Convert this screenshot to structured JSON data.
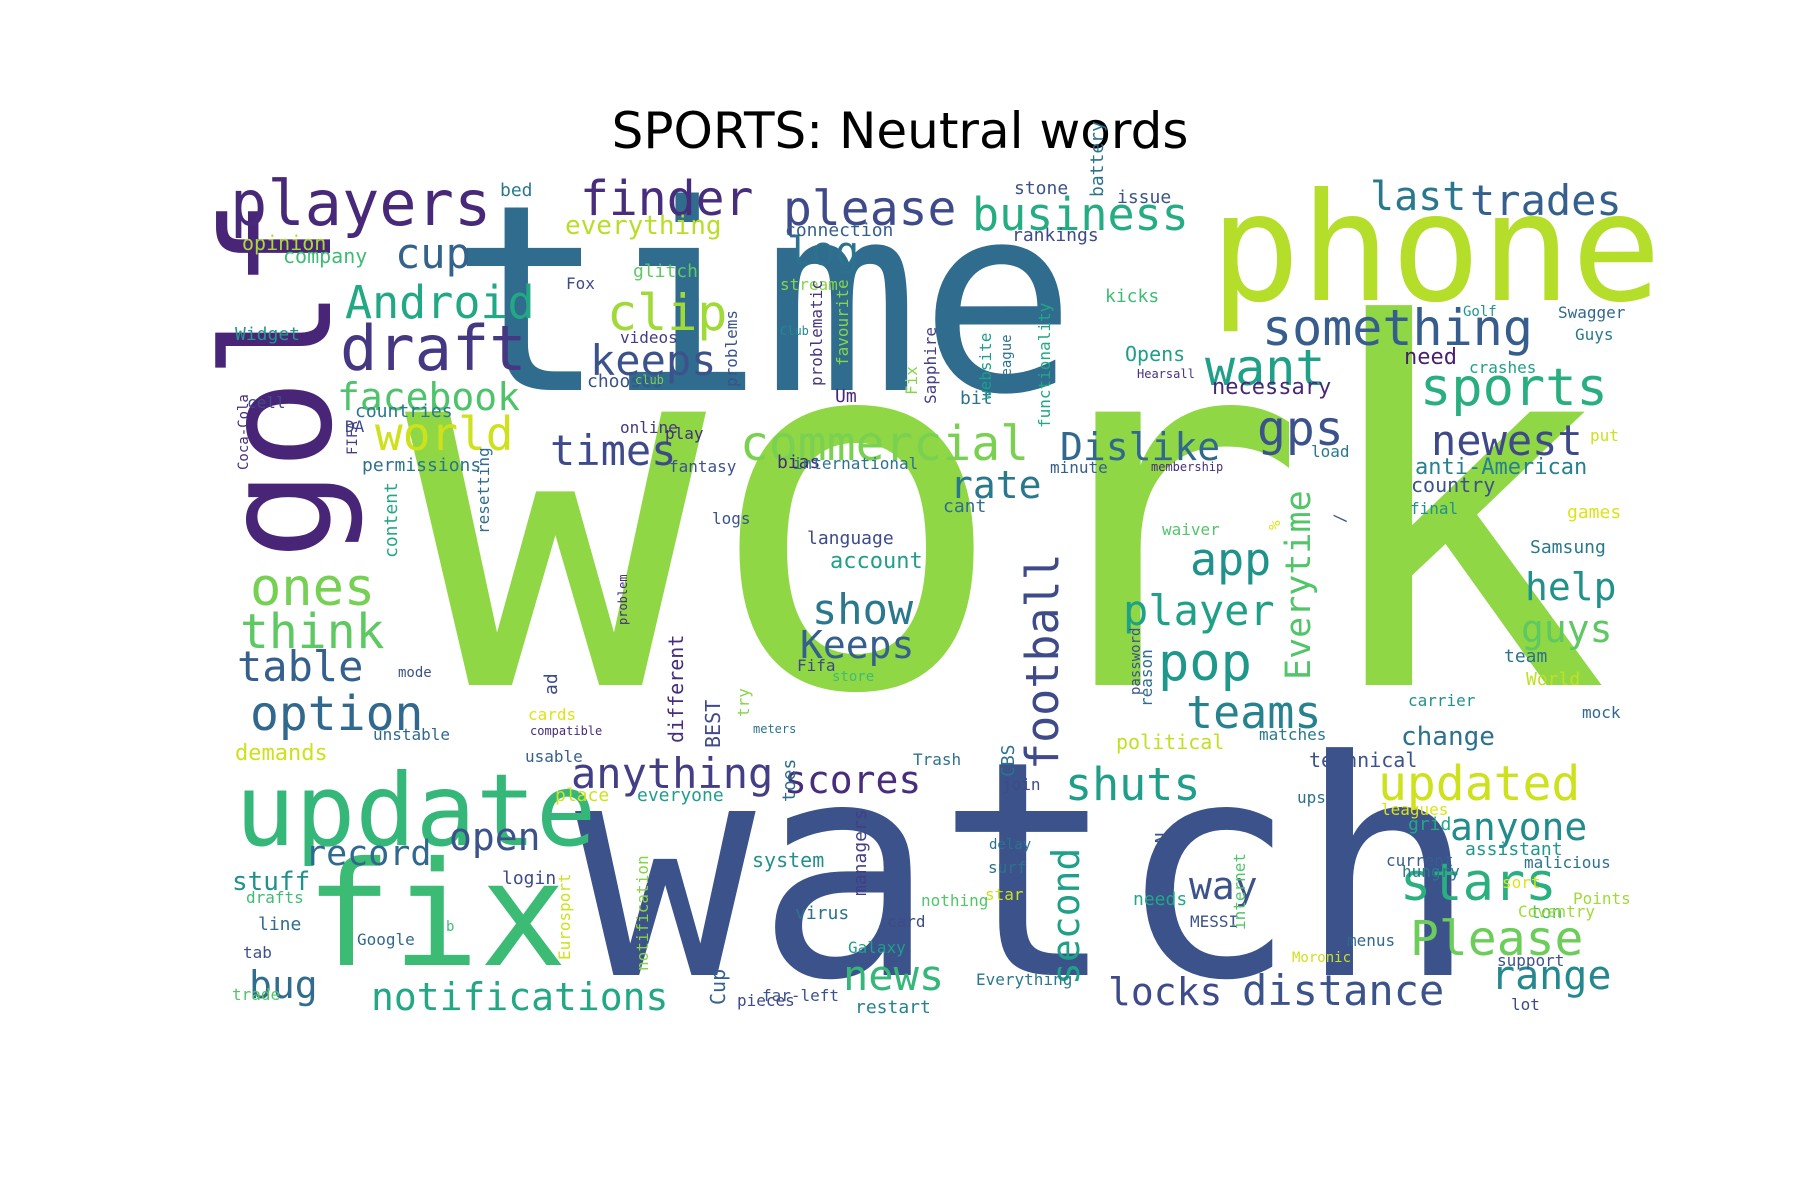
{
  "title": "SPORTS: Neutral words",
  "words": [
    {
      "text": "work",
      "color": "#8fd744"
    },
    {
      "text": "time",
      "color": "#2f6c8e"
    },
    {
      "text": "watch",
      "color": "#3b528b"
    },
    {
      "text": "phone",
      "color": "#b5de2b"
    },
    {
      "text": "golf",
      "color": "#482576"
    },
    {
      "text": "update",
      "color": "#35b779"
    },
    {
      "text": "fix",
      "color": "#3cbb75"
    },
    {
      "text": "players",
      "color": "#482878"
    },
    {
      "text": "draft",
      "color": "#453781"
    },
    {
      "text": "finder",
      "color": "#472d7b"
    },
    {
      "text": "please",
      "color": "#3e4a89"
    },
    {
      "text": "business",
      "color": "#25ac82"
    },
    {
      "text": "last",
      "color": "#2a788e"
    },
    {
      "text": "trades",
      "color": "#355f8d"
    },
    {
      "text": "something",
      "color": "#365d8d"
    },
    {
      "text": "want",
      "color": "#1fa088"
    },
    {
      "text": "sports",
      "color": "#29af7f"
    },
    {
      "text": "Android",
      "color": "#22a884"
    },
    {
      "text": "clip",
      "color": "#a0da39"
    },
    {
      "text": "keeps",
      "color": "#3b528b"
    },
    {
      "text": "log",
      "color": "#2c728e"
    },
    {
      "text": "cup",
      "color": "#33638d"
    },
    {
      "text": "facebook",
      "color": "#4ec36b"
    },
    {
      "text": "world",
      "color": "#cde11d"
    },
    {
      "text": "commercial",
      "color": "#7ad151"
    },
    {
      "text": "Dislike",
      "color": "#31688e"
    },
    {
      "text": "gps",
      "color": "#3b528b"
    },
    {
      "text": "newest",
      "color": "#3e4989"
    },
    {
      "text": "times",
      "color": "#3e4a89"
    },
    {
      "text": "rate",
      "color": "#2a788e"
    },
    {
      "text": "ones",
      "color": "#75d054"
    },
    {
      "text": "think",
      "color": "#5ec962"
    },
    {
      "text": "table",
      "color": "#355f8d"
    },
    {
      "text": "option",
      "color": "#31688e"
    },
    {
      "text": "app",
      "color": "#20928c"
    },
    {
      "text": "player",
      "color": "#1fa187"
    },
    {
      "text": "football",
      "color": "#3e4a89"
    },
    {
      "text": "Everytime",
      "color": "#52c569"
    },
    {
      "text": "pop",
      "color": "#1f988b"
    },
    {
      "text": "help",
      "color": "#21918c"
    },
    {
      "text": "guys",
      "color": "#5ec962"
    },
    {
      "text": "teams",
      "color": "#26828e"
    },
    {
      "text": "show",
      "color": "#2a788e"
    },
    {
      "text": "Keeps",
      "color": "#355f8d"
    },
    {
      "text": "anything",
      "color": "#433e85"
    },
    {
      "text": "scores",
      "color": "#472d7b"
    },
    {
      "text": "updated",
      "color": "#cde11d"
    },
    {
      "text": "shuts",
      "color": "#1f9e89"
    },
    {
      "text": "anyone",
      "color": "#228c8d"
    },
    {
      "text": "stars",
      "color": "#2ab07f"
    },
    {
      "text": "record",
      "color": "#31688e"
    },
    {
      "text": "open",
      "color": "#3b528b"
    },
    {
      "text": "way",
      "color": "#3b528b"
    },
    {
      "text": "Please",
      "color": "#6ccd5a"
    },
    {
      "text": "range",
      "color": "#23898e"
    },
    {
      "text": "notifications",
      "color": "#22a884"
    },
    {
      "text": "news",
      "color": "#35b779"
    },
    {
      "text": "second",
      "color": "#1fa088"
    },
    {
      "text": "locks",
      "color": "#3e4a89"
    },
    {
      "text": "distance",
      "color": "#3b528b"
    },
    {
      "text": "bug",
      "color": "#2f6c8e"
    },
    {
      "text": "stuff",
      "color": "#21918c"
    },
    {
      "text": "change",
      "color": "#2c728e"
    },
    {
      "text": "country",
      "color": "#3b528b"
    },
    {
      "text": "anti-American",
      "color": "#26828e"
    },
    {
      "text": "necessary",
      "color": "#482878"
    },
    {
      "text": "need",
      "color": "#481f70"
    },
    {
      "text": "everything",
      "color": "#b8de29"
    },
    {
      "text": "opinion",
      "color": "#a8db34"
    },
    {
      "text": "company",
      "color": "#3fbc73"
    },
    {
      "text": "bed",
      "color": "#2a788e"
    },
    {
      "text": "stone",
      "color": "#3b528b"
    },
    {
      "text": "issue",
      "color": "#3b528b"
    },
    {
      "text": "battery",
      "color": "#2c728e"
    },
    {
      "text": "rankings",
      "color": "#3e4a89"
    },
    {
      "text": "connection",
      "color": "#355f8d"
    },
    {
      "text": "glitch",
      "color": "#5ec962"
    },
    {
      "text": "Fox",
      "color": "#3e4a89"
    },
    {
      "text": "stream",
      "color": "#86d549"
    },
    {
      "text": "kicks",
      "color": "#3fbc73"
    },
    {
      "text": "Swagger",
      "color": "#31688e"
    },
    {
      "text": "Guys",
      "color": "#2a788e"
    },
    {
      "text": "crashes",
      "color": "#1fa088"
    },
    {
      "text": "Golf",
      "color": "#1f988b"
    },
    {
      "text": "Widget",
      "color": "#1f988b"
    },
    {
      "text": "cell",
      "color": "#3e4a89"
    },
    {
      "text": "countries",
      "color": "#2a788e"
    },
    {
      "text": "chooses",
      "color": "#3b528b"
    },
    {
      "text": "online",
      "color": "#453781"
    },
    {
      "text": "videos",
      "color": "#433e85"
    },
    {
      "text": "Club",
      "color": "#23898e"
    },
    {
      "text": "Opens",
      "color": "#1f9e89"
    },
    {
      "text": "Hearsall",
      "color": "#46337f"
    },
    {
      "text": "Um",
      "color": "#482878"
    },
    {
      "text": "bit",
      "color": "#2c728e"
    },
    {
      "text": "club",
      "color": "#7ad151"
    },
    {
      "text": "play",
      "color": "#472d7b"
    },
    {
      "text": "fantasy",
      "color": "#3b528b"
    },
    {
      "text": "bias",
      "color": "#482878"
    },
    {
      "text": "international",
      "color": "#2c728e"
    },
    {
      "text": "minute",
      "color": "#355f8d"
    },
    {
      "text": "membership",
      "color": "#472d7b"
    },
    {
      "text": "load",
      "color": "#2a788e"
    },
    {
      "text": "put",
      "color": "#cde11d"
    },
    {
      "text": "permissions",
      "color": "#2c728e"
    },
    {
      "text": "DA",
      "color": "#3e4a89"
    },
    {
      "text": "FIFA",
      "color": "#433e85"
    },
    {
      "text": "Coca-Cola",
      "color": "#472d7b"
    },
    {
      "text": "resetting",
      "color": "#2f6c8e"
    },
    {
      "text": "content",
      "color": "#22a884"
    },
    {
      "text": "logs",
      "color": "#3b528b"
    },
    {
      "text": "language",
      "color": "#3e4a89"
    },
    {
      "text": "account",
      "color": "#1f9e89"
    },
    {
      "text": "cant",
      "color": "#2f6c8e"
    },
    {
      "text": "waiver",
      "color": "#52c569"
    },
    {
      "text": "final",
      "color": "#21918c"
    },
    {
      "text": "games",
      "color": "#dde318"
    },
    {
      "text": "Samsung",
      "color": "#2a788e"
    },
    {
      "text": "team",
      "color": "#2c728e"
    },
    {
      "text": "World",
      "color": "#c2df23"
    },
    {
      "text": "mock",
      "color": "#31688e"
    },
    {
      "text": "carrier",
      "color": "#21918c"
    },
    {
      "text": "mode",
      "color": "#3b528b"
    },
    {
      "text": "ad",
      "color": "#3e4a89"
    },
    {
      "text": "Fifa",
      "color": "#3e4989"
    },
    {
      "text": "store",
      "color": "#3fbc73"
    },
    {
      "text": "cards",
      "color": "#dde318"
    },
    {
      "text": "compatible",
      "color": "#472d7b"
    },
    {
      "text": "meters",
      "color": "#2c728e"
    },
    {
      "text": "try",
      "color": "#86d549"
    },
    {
      "text": "political",
      "color": "#c2df23"
    },
    {
      "text": "matches",
      "color": "#2a788e"
    },
    {
      "text": "technical",
      "color": "#3b528b"
    },
    {
      "text": "unstable",
      "color": "#31688e"
    },
    {
      "text": "demands",
      "color": "#cde11d"
    },
    {
      "text": "usable",
      "color": "#355f8d"
    },
    {
      "text": "Trash",
      "color": "#2c728e"
    },
    {
      "text": "place",
      "color": "#cde11d"
    },
    {
      "text": "everyone",
      "color": "#1f9e89"
    },
    {
      "text": "join",
      "color": "#3e4a89"
    },
    {
      "text": "toes",
      "color": "#2f6c8e"
    },
    {
      "text": "ups",
      "color": "#2c728e"
    },
    {
      "text": "leagues",
      "color": "#dde318"
    },
    {
      "text": "grid",
      "color": "#22a884"
    },
    {
      "text": "assistant",
      "color": "#1f988b"
    },
    {
      "text": "current",
      "color": "#355f8d"
    },
    {
      "text": "sort",
      "color": "#dde318"
    },
    {
      "text": "hungry",
      "color": "#2a788e"
    },
    {
      "text": "ton",
      "color": "#3fbc73"
    },
    {
      "text": "malicious",
      "color": "#2c728e"
    },
    {
      "text": "Points",
      "color": "#a0da39"
    },
    {
      "text": "Coventry",
      "color": "#a0da39"
    },
    {
      "text": "menus",
      "color": "#31688e"
    },
    {
      "text": "Moronic",
      "color": "#cde11d"
    },
    {
      "text": "support",
      "color": "#3b528b"
    },
    {
      "text": "lot",
      "color": "#3e4a89"
    },
    {
      "text": "needs",
      "color": "#22a884"
    },
    {
      "text": "MESSI",
      "color": "#3b528b"
    },
    {
      "text": "system",
      "color": "#21918c"
    },
    {
      "text": "delay",
      "color": "#2c728e"
    },
    {
      "text": "surf",
      "color": "#2c728e"
    },
    {
      "text": "star",
      "color": "#cde11d"
    },
    {
      "text": "nothing",
      "color": "#52c569"
    },
    {
      "text": "card",
      "color": "#3e4a89"
    },
    {
      "text": "Galaxy",
      "color": "#1f9e89"
    },
    {
      "text": "virus",
      "color": "#2c728e"
    },
    {
      "text": "Everything",
      "color": "#2a788e"
    },
    {
      "text": "far-left",
      "color": "#3b528b"
    },
    {
      "text": "pieces",
      "color": "#3e4a89"
    },
    {
      "text": "restart",
      "color": "#26828e"
    },
    {
      "text": "login",
      "color": "#3e4a89"
    },
    {
      "text": "drafts",
      "color": "#3fbc73"
    },
    {
      "text": "line",
      "color": "#2f6c8e"
    },
    {
      "text": "tab",
      "color": "#3b528b"
    },
    {
      "text": "Google",
      "color": "#31688e"
    },
    {
      "text": "b",
      "color": "#3fbc73"
    },
    {
      "text": "trade",
      "color": "#52c569"
    },
    {
      "text": "Eurosport",
      "color": "#cde11d"
    },
    {
      "text": "notification",
      "color": "#86d549"
    },
    {
      "text": "Cup",
      "color": "#33638d"
    },
    {
      "text": "BEST",
      "color": "#3e4a89"
    },
    {
      "text": "different",
      "color": "#472d7b"
    },
    {
      "text": "problem",
      "color": "#472d7b"
    },
    {
      "text": "problems",
      "color": "#3b528b"
    },
    {
      "text": "problematic",
      "color": "#453781"
    },
    {
      "text": "Fix",
      "color": "#86d549"
    },
    {
      "text": "Sapphire",
      "color": "#433e85"
    },
    {
      "text": "favourite",
      "color": "#86d549"
    },
    {
      "text": "website",
      "color": "#1f9e89"
    },
    {
      "text": "functionality",
      "color": "#22a884"
    },
    {
      "text": "league",
      "color": "#2c728e"
    },
    {
      "text": "CBS",
      "color": "#2c728e"
    },
    {
      "text": "managers",
      "color": "#433e85"
    },
    {
      "text": "SSN",
      "color": "#3b528b"
    },
    {
      "text": "internet",
      "color": "#52c569"
    },
    {
      "text": "reason",
      "color": "#2f6c8e"
    },
    {
      "text": "password",
      "color": "#3b528b"
    },
    {
      "text": "%",
      "color": "#dde318"
    },
    {
      "text": "/",
      "color": "#3b528b"
    }
  ]
}
